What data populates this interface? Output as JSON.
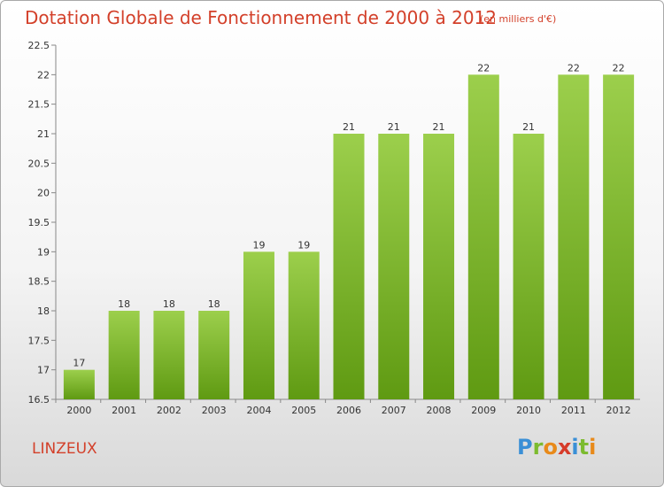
{
  "title": "Dotation Globale de Fonctionnement de 2000 à 2012",
  "subtitle": "(en milliers d'€)",
  "commune": "LINZEUX",
  "logo": {
    "p": "P",
    "r": "r",
    "o": "o",
    "x": "x",
    "i1": "i",
    "t": "t",
    "i2": "i"
  },
  "colors": {
    "bar_top": "#9ccf4c",
    "bar_bottom": "#5f9a12",
    "title": "#d3402a"
  },
  "chart_data": {
    "type": "bar",
    "title": "Dotation Globale de Fonctionnement de 2000 à 2012",
    "subtitle": "(en milliers d'€)",
    "categories": [
      "2000",
      "2001",
      "2002",
      "2003",
      "2004",
      "2005",
      "2006",
      "2007",
      "2008",
      "2009",
      "2010",
      "2011",
      "2012"
    ],
    "values": [
      17,
      18,
      18,
      18,
      19,
      19,
      21,
      21,
      21,
      22,
      21,
      22,
      22
    ],
    "data_labels": [
      "17",
      "18",
      "18",
      "18",
      "19",
      "19",
      "21",
      "21",
      "21",
      "22",
      "21",
      "22",
      "22"
    ],
    "y_ticks": [
      "16.5",
      "17",
      "17.5",
      "18",
      "18.5",
      "19",
      "19.5",
      "20",
      "20.5",
      "21",
      "21.5",
      "22",
      "22.5"
    ],
    "ylim": [
      16.5,
      22.5
    ],
    "grid": false,
    "xlabel": "",
    "ylabel": ""
  }
}
